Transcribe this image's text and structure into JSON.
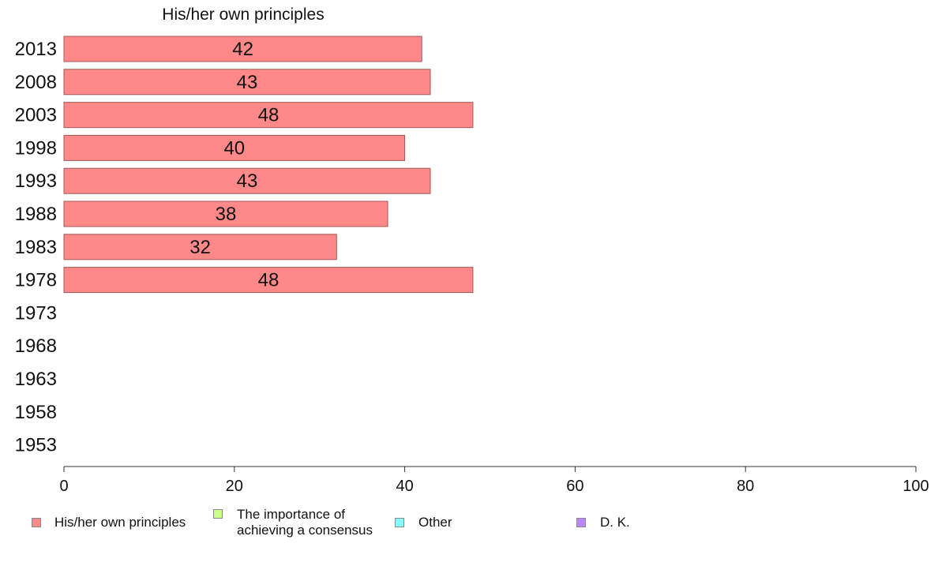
{
  "chart_data": {
    "type": "bar",
    "orientation": "horizontal",
    "title": "His/her own principles",
    "categories": [
      "2013",
      "2008",
      "2003",
      "1998",
      "1993",
      "1988",
      "1983",
      "1978",
      "1973",
      "1968",
      "1963",
      "1958",
      "1953"
    ],
    "series": [
      {
        "name": "His/her own principles",
        "color": "#ff8888",
        "values": [
          42,
          43,
          48,
          40,
          43,
          38,
          32,
          48,
          null,
          null,
          null,
          null,
          null
        ],
        "labels": [
          "42",
          "43",
          "48",
          "40",
          "43",
          "38",
          "32",
          "48",
          "",
          "",
          "",
          "",
          ""
        ]
      }
    ],
    "xlim": [
      0,
      100
    ],
    "xticks": [
      "0",
      "20",
      "40",
      "60",
      "80",
      "100"
    ],
    "grid": false,
    "legend": {
      "placement": "bottom",
      "items": [
        {
          "label": "His/her own principles",
          "color": "#ff8888"
        },
        {
          "label": "The importance of achieving a consensus",
          "line1": "The importance of",
          "line2": "achieving a consensus",
          "color": "#ccff88"
        },
        {
          "label": "Other",
          "color": "#88ffff"
        },
        {
          "label": "D. K.",
          "color": "#bb88ff"
        }
      ]
    }
  }
}
